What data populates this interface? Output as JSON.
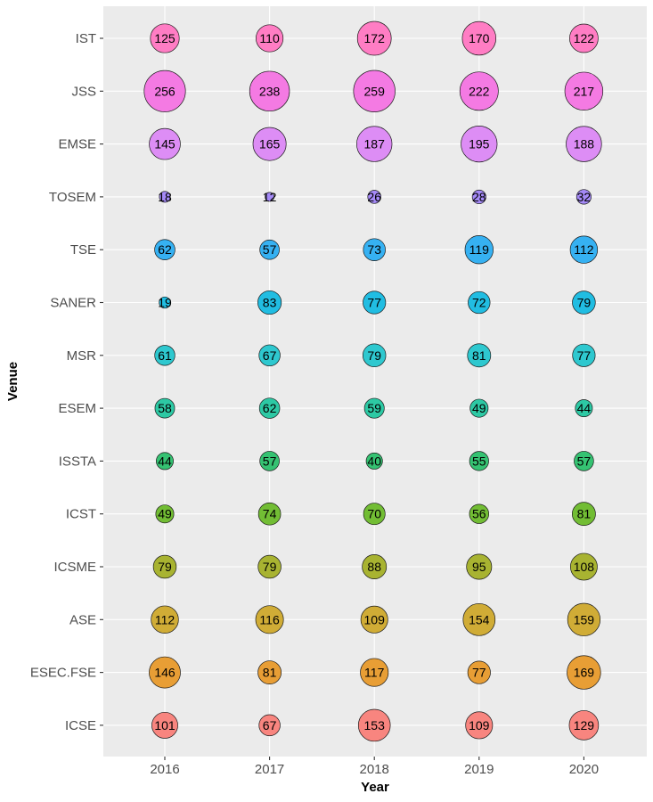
{
  "chart_data": {
    "type": "scatter",
    "xlabel": "Year",
    "ylabel": "Venue",
    "x": [
      "2016",
      "2017",
      "2018",
      "2019",
      "2020"
    ],
    "categories": [
      "IST",
      "JSS",
      "EMSE",
      "TOSEM",
      "TSE",
      "SANER",
      "MSR",
      "ESEM",
      "ISSTA",
      "ICST",
      "ICSME",
      "ASE",
      "ESEC.FSE",
      "ICSE"
    ],
    "grid": true,
    "legend": "none",
    "series": [
      {
        "venue": "IST",
        "color": "#FF7DC4",
        "values": [
          125,
          110,
          172,
          170,
          122
        ]
      },
      {
        "venue": "JSS",
        "color": "#F47AE3",
        "values": [
          256,
          238,
          259,
          222,
          217
        ]
      },
      {
        "venue": "EMSE",
        "color": "#DD8DF5",
        "values": [
          145,
          165,
          187,
          195,
          188
        ]
      },
      {
        "venue": "TOSEM",
        "color": "#A58AF7",
        "values": [
          18,
          12,
          26,
          28,
          32
        ]
      },
      {
        "venue": "TSE",
        "color": "#36B1F2",
        "values": [
          62,
          57,
          73,
          119,
          112
        ]
      },
      {
        "venue": "SANER",
        "color": "#21BDE2",
        "values": [
          19,
          83,
          77,
          72,
          79
        ]
      },
      {
        "venue": "MSR",
        "color": "#2EC8CF",
        "values": [
          61,
          67,
          79,
          81,
          77
        ]
      },
      {
        "venue": "ESEM",
        "color": "#2DC9A4",
        "values": [
          58,
          62,
          59,
          49,
          44
        ]
      },
      {
        "venue": "ISSTA",
        "color": "#35C272",
        "values": [
          44,
          57,
          40,
          55,
          57
        ]
      },
      {
        "venue": "ICST",
        "color": "#72BD34",
        "values": [
          49,
          74,
          70,
          56,
          81
        ]
      },
      {
        "venue": "ICSME",
        "color": "#A8B331",
        "values": [
          79,
          79,
          88,
          95,
          108
        ]
      },
      {
        "venue": "ASE",
        "color": "#D0AC36",
        "values": [
          112,
          116,
          109,
          154,
          159
        ]
      },
      {
        "venue": "ESEC.FSE",
        "color": "#E89E35",
        "values": [
          146,
          81,
          117,
          77,
          169
        ]
      },
      {
        "venue": "ICSE",
        "color": "#F8857F",
        "values": [
          101,
          67,
          153,
          109,
          129
        ]
      }
    ]
  }
}
